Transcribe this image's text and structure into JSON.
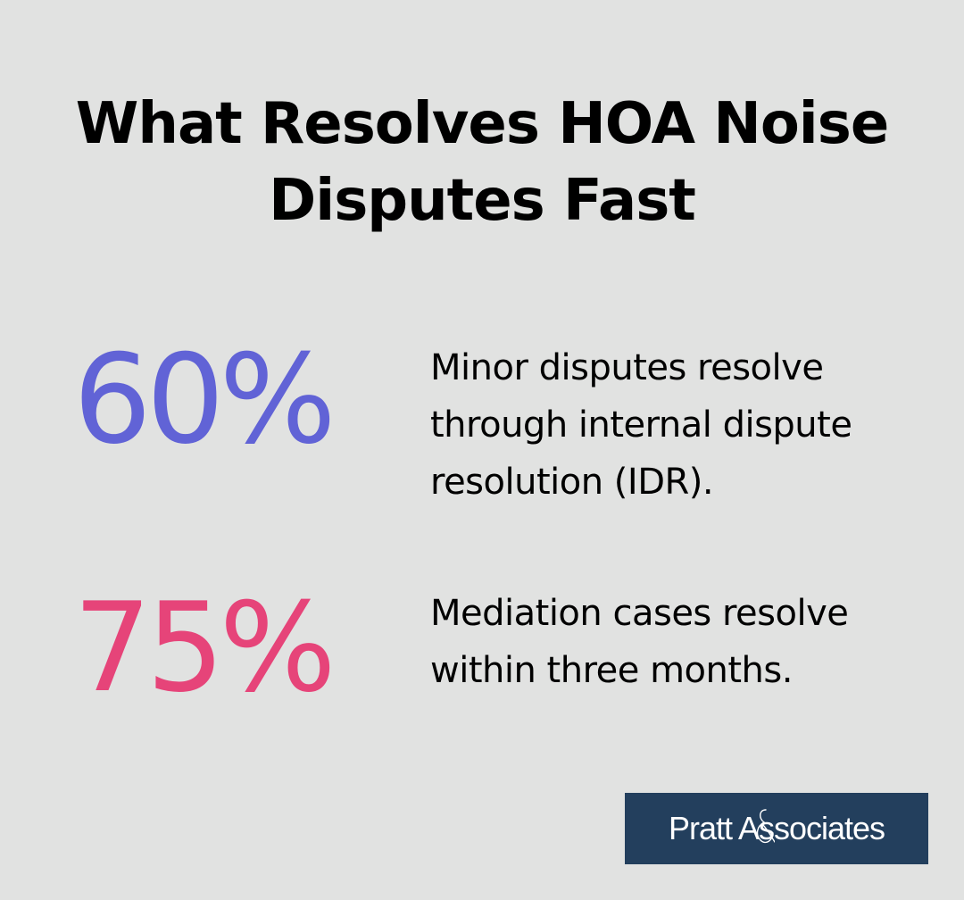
{
  "title": "What Resolves HOA Noise Disputes Fast",
  "stats": [
    {
      "value": "60%",
      "description": "Minor disputes resolve through internal dispute resolution (IDR).",
      "color": "#6163d6"
    },
    {
      "value": "75%",
      "description": "Mediation cases resolve within three months.",
      "color": "#e64479"
    }
  ],
  "logo": {
    "text": "Pratt Associates",
    "background": "#233f5d"
  },
  "colors": {
    "background": "#e1e2e1"
  }
}
